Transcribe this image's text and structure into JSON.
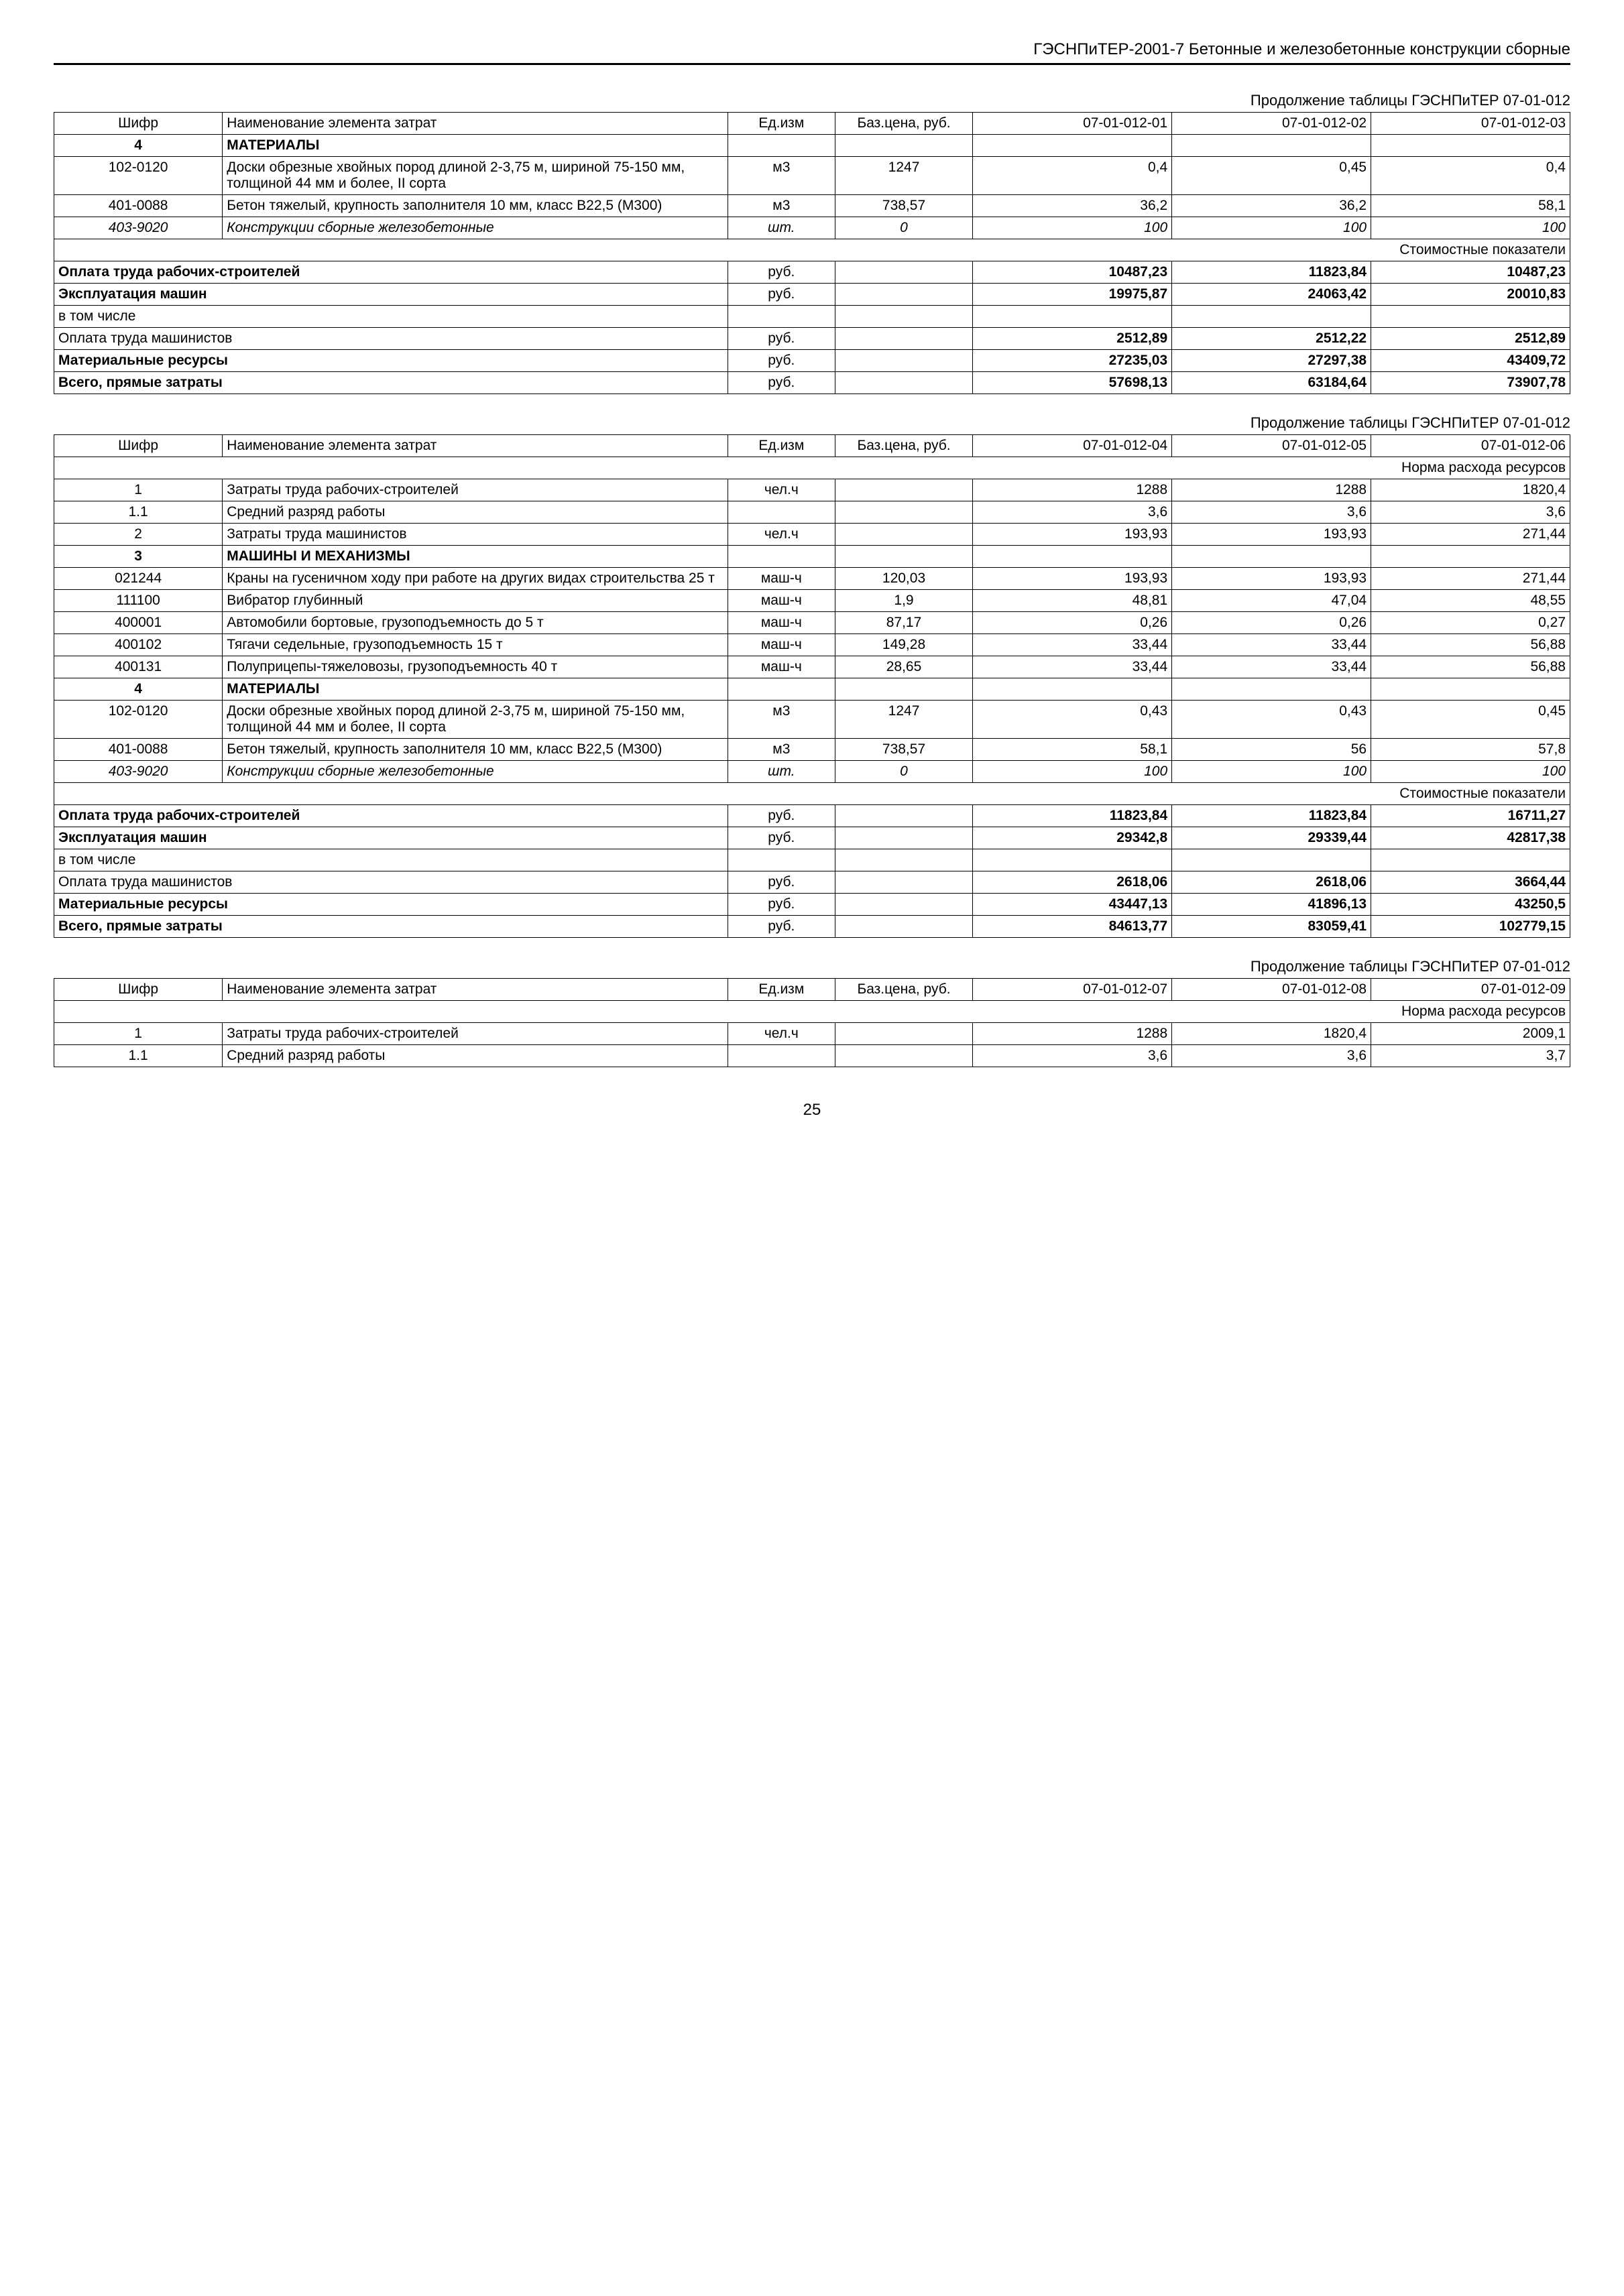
{
  "header": "ГЭСНПиТЕР-2001-7 Бетонные и железобетонные конструкции сборные",
  "page_number": "25",
  "tables": [
    {
      "caption": "Продолжение таблицы ГЭСНПиТЕР 07-01-012",
      "headers": [
        "Шифр",
        "Наименование элемента затрат",
        "Ед.изм",
        "Баз.цена, руб.",
        "07-01-012-01",
        "07-01-012-02",
        "07-01-012-03"
      ],
      "sections": [
        {
          "type": "section",
          "code": "4",
          "name": "МАТЕРИАЛЫ"
        },
        {
          "type": "row",
          "code": "102-0120",
          "name": "Доски обрезные хвойных пород длиной 2-3,75 м, шириной 75-150 мм, толщиной 44 мм и более, II сорта",
          "unit": "м3",
          "price": "1247",
          "v1": "0,4",
          "v2": "0,45",
          "v3": "0,4"
        },
        {
          "type": "row",
          "code": "401-0088",
          "name": "Бетон тяжелый, крупность заполнителя 10 мм, класс В22,5 (М300)",
          "unit": "м3",
          "price": "738,57",
          "v1": "36,2",
          "v2": "36,2",
          "v3": "58,1"
        },
        {
          "type": "row",
          "italic": true,
          "code": "403-9020",
          "name": "Конструкции сборные железобетонные",
          "unit": "шт.",
          "price": "0",
          "v1": "100",
          "v2": "100",
          "v3": "100"
        },
        {
          "type": "subtitle",
          "label": "Стоимостные показатели"
        },
        {
          "type": "summary",
          "name": "Оплата труда рабочих-строителей",
          "unit": "руб.",
          "v1": "10487,23",
          "v2": "11823,84",
          "v3": "10487,23"
        },
        {
          "type": "summary",
          "name": "Эксплуатация машин",
          "unit": "руб.",
          "v1": "19975,87",
          "v2": "24063,42",
          "v3": "20010,83"
        },
        {
          "type": "summary",
          "name": "в том числе",
          "unit": "",
          "v1": "",
          "v2": "",
          "v3": "",
          "plain": true
        },
        {
          "type": "summary",
          "name": "Оплата труда машинистов",
          "unit": "руб.",
          "v1": "2512,89",
          "v2": "2512,22",
          "v3": "2512,89",
          "plain": true
        },
        {
          "type": "summary",
          "name": "Материальные ресурсы",
          "unit": "руб.",
          "v1": "27235,03",
          "v2": "27297,38",
          "v3": "43409,72"
        },
        {
          "type": "summary",
          "name": "Всего, прямые затраты",
          "unit": "руб.",
          "v1": "57698,13",
          "v2": "63184,64",
          "v3": "73907,78"
        }
      ]
    },
    {
      "caption": "Продолжение таблицы ГЭСНПиТЕР 07-01-012",
      "headers": [
        "Шифр",
        "Наименование элемента затрат",
        "Ед.изм",
        "Баз.цена, руб.",
        "07-01-012-04",
        "07-01-012-05",
        "07-01-012-06"
      ],
      "sections": [
        {
          "type": "subtitle",
          "label": "Норма расхода ресурсов"
        },
        {
          "type": "row",
          "code": "1",
          "name": "Затраты труда рабочих-строителей",
          "unit": "чел.ч",
          "price": "",
          "v1": "1288",
          "v2": "1288",
          "v3": "1820,4"
        },
        {
          "type": "row",
          "code": "1.1",
          "name": "Средний разряд работы",
          "unit": "",
          "price": "",
          "v1": "3,6",
          "v2": "3,6",
          "v3": "3,6"
        },
        {
          "type": "row",
          "code": "2",
          "name": "Затраты труда машинистов",
          "unit": "чел.ч",
          "price": "",
          "v1": "193,93",
          "v2": "193,93",
          "v3": "271,44"
        },
        {
          "type": "section",
          "code": "3",
          "name": "МАШИНЫ И МЕХАНИЗМЫ"
        },
        {
          "type": "row",
          "code": "021244",
          "name": "Краны на гусеничном ходу при работе на других видах строительства 25 т",
          "unit": "маш-ч",
          "price": "120,03",
          "v1": "193,93",
          "v2": "193,93",
          "v3": "271,44"
        },
        {
          "type": "row",
          "code": "111100",
          "name": "Вибратор глубинный",
          "unit": "маш-ч",
          "price": "1,9",
          "v1": "48,81",
          "v2": "47,04",
          "v3": "48,55"
        },
        {
          "type": "row",
          "code": "400001",
          "name": "Автомобили бортовые, грузоподъемность до 5 т",
          "unit": "маш-ч",
          "price": "87,17",
          "v1": "0,26",
          "v2": "0,26",
          "v3": "0,27"
        },
        {
          "type": "row",
          "code": "400102",
          "name": "Тягачи седельные, грузоподъемность 15 т",
          "unit": "маш-ч",
          "price": "149,28",
          "v1": "33,44",
          "v2": "33,44",
          "v3": "56,88"
        },
        {
          "type": "row",
          "code": "400131",
          "name": "Полуприцепы-тяжеловозы, грузоподъемность 40 т",
          "unit": "маш-ч",
          "price": "28,65",
          "v1": "33,44",
          "v2": "33,44",
          "v3": "56,88"
        },
        {
          "type": "section",
          "code": "4",
          "name": "МАТЕРИАЛЫ"
        },
        {
          "type": "row",
          "code": "102-0120",
          "name": "Доски обрезные хвойных пород длиной 2-3,75 м, шириной 75-150 мм, толщиной 44 мм и более, II сорта",
          "unit": "м3",
          "price": "1247",
          "v1": "0,43",
          "v2": "0,43",
          "v3": "0,45"
        },
        {
          "type": "row",
          "code": "401-0088",
          "name": "Бетон тяжелый, крупность заполнителя 10 мм, класс В22,5 (М300)",
          "unit": "м3",
          "price": "738,57",
          "v1": "58,1",
          "v2": "56",
          "v3": "57,8"
        },
        {
          "type": "row",
          "italic": true,
          "code": "403-9020",
          "name": "Конструкции сборные железобетонные",
          "unit": "шт.",
          "price": "0",
          "v1": "100",
          "v2": "100",
          "v3": "100"
        },
        {
          "type": "subtitle",
          "label": "Стоимостные показатели"
        },
        {
          "type": "summary",
          "name": "Оплата труда рабочих-строителей",
          "unit": "руб.",
          "v1": "11823,84",
          "v2": "11823,84",
          "v3": "16711,27"
        },
        {
          "type": "summary",
          "name": "Эксплуатация машин",
          "unit": "руб.",
          "v1": "29342,8",
          "v2": "29339,44",
          "v3": "42817,38"
        },
        {
          "type": "summary",
          "name": "в том числе",
          "unit": "",
          "v1": "",
          "v2": "",
          "v3": "",
          "plain": true
        },
        {
          "type": "summary",
          "name": "Оплата труда машинистов",
          "unit": "руб.",
          "v1": "2618,06",
          "v2": "2618,06",
          "v3": "3664,44",
          "plain": true
        },
        {
          "type": "summary",
          "name": "Материальные ресурсы",
          "unit": "руб.",
          "v1": "43447,13",
          "v2": "41896,13",
          "v3": "43250,5"
        },
        {
          "type": "summary",
          "name": "Всего, прямые затраты",
          "unit": "руб.",
          "v1": "84613,77",
          "v2": "83059,41",
          "v3": "102779,15"
        }
      ]
    },
    {
      "caption": "Продолжение таблицы ГЭСНПиТЕР 07-01-012",
      "headers": [
        "Шифр",
        "Наименование элемента затрат",
        "Ед.изм",
        "Баз.цена, руб.",
        "07-01-012-07",
        "07-01-012-08",
        "07-01-012-09"
      ],
      "sections": [
        {
          "type": "subtitle",
          "label": "Норма расхода ресурсов"
        },
        {
          "type": "row",
          "code": "1",
          "name": "Затраты труда рабочих-строителей",
          "unit": "чел.ч",
          "price": "",
          "v1": "1288",
          "v2": "1820,4",
          "v3": "2009,1"
        },
        {
          "type": "row",
          "code": "1.1",
          "name": "Средний разряд работы",
          "unit": "",
          "price": "",
          "v1": "3,6",
          "v2": "3,6",
          "v3": "3,7"
        }
      ]
    }
  ]
}
